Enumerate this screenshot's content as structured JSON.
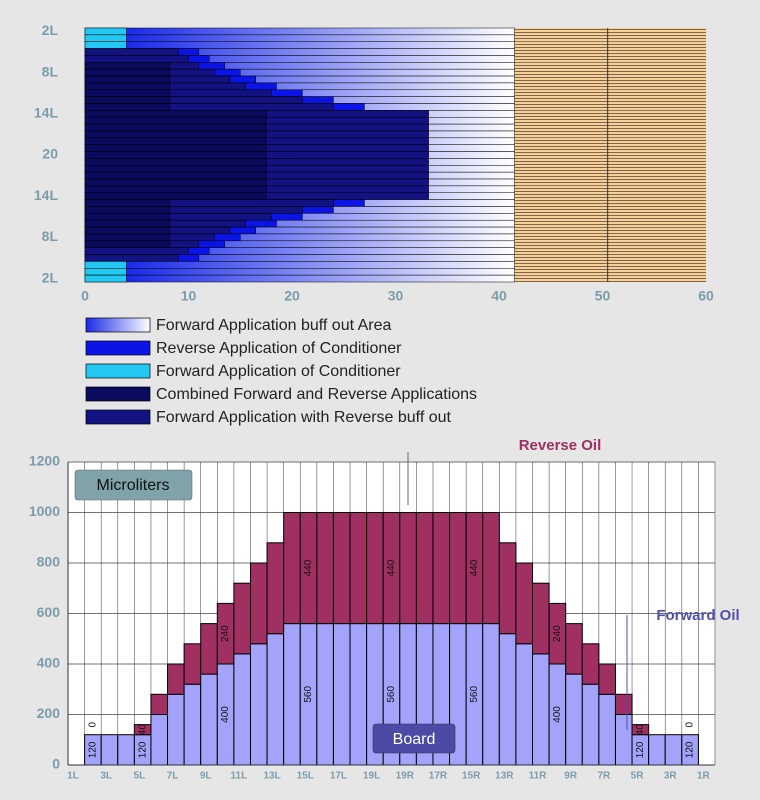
{
  "chart_data": [
    {
      "type": "overlay_bar",
      "categories": [
        "2L",
        null,
        null,
        null,
        null,
        null,
        "8L",
        null,
        null,
        null,
        null,
        null,
        "14L",
        null,
        null,
        null,
        null,
        null,
        "20",
        null,
        null,
        null,
        null,
        null,
        "14L",
        null,
        null,
        null,
        null,
        null,
        "8L",
        null,
        null,
        null,
        null,
        null,
        "2L"
      ],
      "series": [
        {
          "name": "Forward Application buff out Area",
          "color": "#1a2ae8",
          "fade_to": "#ffffff",
          "values": [
            41.5,
            41.5,
            41.5,
            41.5,
            41.5,
            41.5,
            41.5,
            41.5,
            41.5,
            41.5,
            41.5,
            41.5,
            41.5,
            41.5,
            41.5,
            41.5,
            41.5,
            41.5,
            41.5,
            41.5,
            41.5,
            41.5,
            41.5,
            41.5,
            41.5,
            41.5,
            41.5,
            41.5,
            41.5,
            41.5,
            41.5,
            41.5,
            41.5,
            41.5,
            41.5,
            41.5,
            41.5
          ]
        },
        {
          "name": "Reverse Application of Conditioner",
          "color": "#0a14e6",
          "values": [
            0,
            0,
            0,
            11,
            12,
            13.5,
            15,
            16.5,
            18.5,
            21,
            24,
            27,
            0,
            0,
            0,
            0,
            0,
            0,
            0,
            0,
            0,
            0,
            0,
            0,
            0,
            27,
            24,
            21,
            18.5,
            16.5,
            15,
            13.5,
            12,
            11,
            0,
            0,
            0
          ]
        },
        {
          "name": "Forward Application of Conditioner",
          "color": "#22c8f2",
          "values": [
            4,
            4,
            4,
            0,
            0,
            0,
            0,
            0,
            0,
            0,
            0,
            0,
            0,
            0,
            0,
            0,
            0,
            0,
            0,
            0,
            0,
            0,
            0,
            0,
            0,
            0,
            0,
            0,
            0,
            0,
            0,
            0,
            0,
            0,
            4,
            4,
            4
          ]
        },
        {
          "name": "Combined Forward and Reverse Applications",
          "color": "#0a0a5e",
          "values": [
            0,
            0,
            0,
            0,
            0,
            8.2,
            8.2,
            8.2,
            8.2,
            8.2,
            8.2,
            8.2,
            17.5,
            17.5,
            17.5,
            17.5,
            17.5,
            17.5,
            17.5,
            17.5,
            17.5,
            17.5,
            17.5,
            17.5,
            17.5,
            8.2,
            8.2,
            8.2,
            8.2,
            8.2,
            8.2,
            8.2,
            0,
            0,
            0,
            0,
            0
          ]
        },
        {
          "name": "Forward Application with Reverse buff out",
          "color": "#121282",
          "values": [
            0,
            0,
            0,
            9,
            10,
            11,
            12.5,
            14,
            15.5,
            18,
            21,
            24,
            33.2,
            33.2,
            33.2,
            33.2,
            33.2,
            33.2,
            33.2,
            33.2,
            33.2,
            33.2,
            33.2,
            33.2,
            33.2,
            24,
            21,
            18,
            15.5,
            14,
            12.5,
            11,
            10,
            9,
            0,
            0,
            0
          ]
        }
      ],
      "reference_x": 50.5,
      "xlim": [
        0,
        60
      ],
      "xticks": [
        0,
        10,
        20,
        30,
        40,
        50,
        60
      ]
    },
    {
      "type": "stacked_bar",
      "categories": [
        "1L",
        null,
        "3L",
        null,
        "5L",
        null,
        "7L",
        null,
        "9L",
        null,
        "11L",
        null,
        "13L",
        null,
        "15L",
        null,
        "17L",
        null,
        "19L",
        null,
        "19R",
        null,
        "17R",
        null,
        "15R",
        null,
        "13R",
        null,
        "11R",
        null,
        "9R",
        null,
        "7R",
        null,
        "5R",
        null,
        "3R",
        null,
        "1R"
      ],
      "series": [
        {
          "name": "Board",
          "color": "#a3a3fb",
          "values": [
            0,
            120,
            120,
            120,
            120,
            200,
            280,
            320,
            360,
            400,
            440,
            480,
            520,
            560,
            560,
            560,
            560,
            560,
            560,
            560,
            560,
            560,
            560,
            560,
            560,
            560,
            520,
            480,
            440,
            400,
            360,
            320,
            280,
            200,
            120,
            120,
            120,
            120,
            0
          ],
          "value_labels": [
            null,
            "120",
            null,
            null,
            "120",
            null,
            null,
            null,
            null,
            "400",
            null,
            null,
            null,
            null,
            "560",
            null,
            null,
            null,
            null,
            "560",
            null,
            null,
            null,
            null,
            "560",
            null,
            null,
            null,
            null,
            "400",
            null,
            null,
            null,
            null,
            "120",
            null,
            null,
            "120",
            null
          ]
        },
        {
          "name": "Reverse Oil",
          "color": "#a02f62",
          "values": [
            0,
            0,
            0,
            0,
            40,
            80,
            120,
            160,
            200,
            240,
            280,
            320,
            360,
            440,
            440,
            440,
            440,
            440,
            440,
            440,
            440,
            440,
            440,
            440,
            440,
            440,
            360,
            320,
            280,
            240,
            200,
            160,
            120,
            80,
            40,
            0,
            0,
            0,
            0
          ],
          "value_labels": [
            null,
            "0",
            null,
            null,
            "40",
            null,
            null,
            null,
            null,
            "240",
            null,
            null,
            null,
            null,
            "440",
            null,
            null,
            null,
            null,
            "440",
            null,
            null,
            null,
            null,
            "440",
            null,
            null,
            null,
            null,
            "240",
            null,
            null,
            null,
            null,
            "40",
            null,
            null,
            "0",
            null
          ]
        }
      ],
      "annotations": [
        "Forward Oil",
        "Microliters"
      ],
      "ylim": [
        0,
        1200
      ],
      "yticks": [
        0,
        200,
        400,
        600,
        800,
        1000,
        1200
      ],
      "grid": true
    }
  ]
}
